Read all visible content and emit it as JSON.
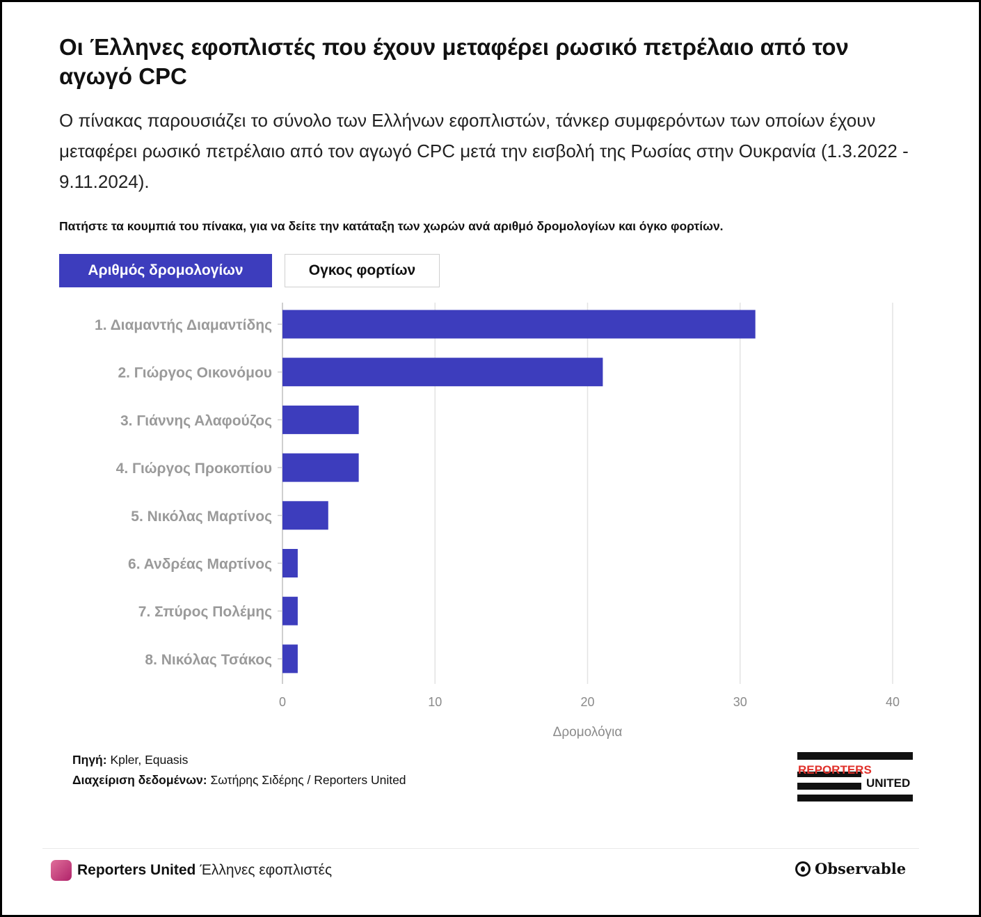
{
  "title": "Οι Έλληνες εφοπλιστές που έχουν μεταφέρει ρωσικό πετρέλαιο από τον αγωγό CPC",
  "subtitle": "Ο πίνακας παρουσιάζει το σύνολο των Ελλήνων εφοπλιστών, τάνκερ συμφερόντων των οποίων έχουν μεταφέρει ρωσικό πετρέλαιο από τον αγωγό CPC μετά την εισβολή της Ρωσίας στην Ουκρανία (1.3.2022 - 9.11.2024).",
  "instruction": "Πατήστε τα κουμπιά του πίνακα, για να δείτε την κατάταξη των χωρών ανά αριθμό δρομολογίων και όγκο φορτίων.",
  "buttons": {
    "active_label": "Αριθμός δρομολογίων",
    "inactive_label": "Ογκος φορτίων"
  },
  "chart_data": {
    "type": "bar",
    "orientation": "horizontal",
    "categories": [
      "1. Διαμαντής Διαμαντίδης",
      "2. Γιώργος Οικονόμου",
      "3. Γιάννης Αλαφούζος",
      "4. Γιώργος Προκοπίου",
      "5. Νικόλας Μαρτίνος",
      "6. Ανδρέας Μαρτίνος",
      "7. Σπύρος Πολέμης",
      "8. Νικόλας Τσάκος"
    ],
    "values": [
      31,
      21,
      5,
      5,
      3,
      1,
      1,
      1
    ],
    "xlabel": "Δρομολόγια",
    "xlim": [
      0,
      40
    ],
    "xticks": [
      "0",
      "10",
      "20",
      "30",
      "40"
    ],
    "grid": true,
    "bar_color": "#3d3dbd"
  },
  "source": {
    "source_label": "Πηγή:",
    "source_value": "Kpler, Equasis",
    "data_label": "Διαχείριση δεδομένων:",
    "data_value": "Σωτήρης Σιδέρης / Reporters United"
  },
  "logo": {
    "line1": "REPORTERS",
    "line2": "UNITED"
  },
  "footer": {
    "org": "Reporters United",
    "notebook": "Έλληνες εφοπλιστές",
    "brand": "Observable"
  }
}
